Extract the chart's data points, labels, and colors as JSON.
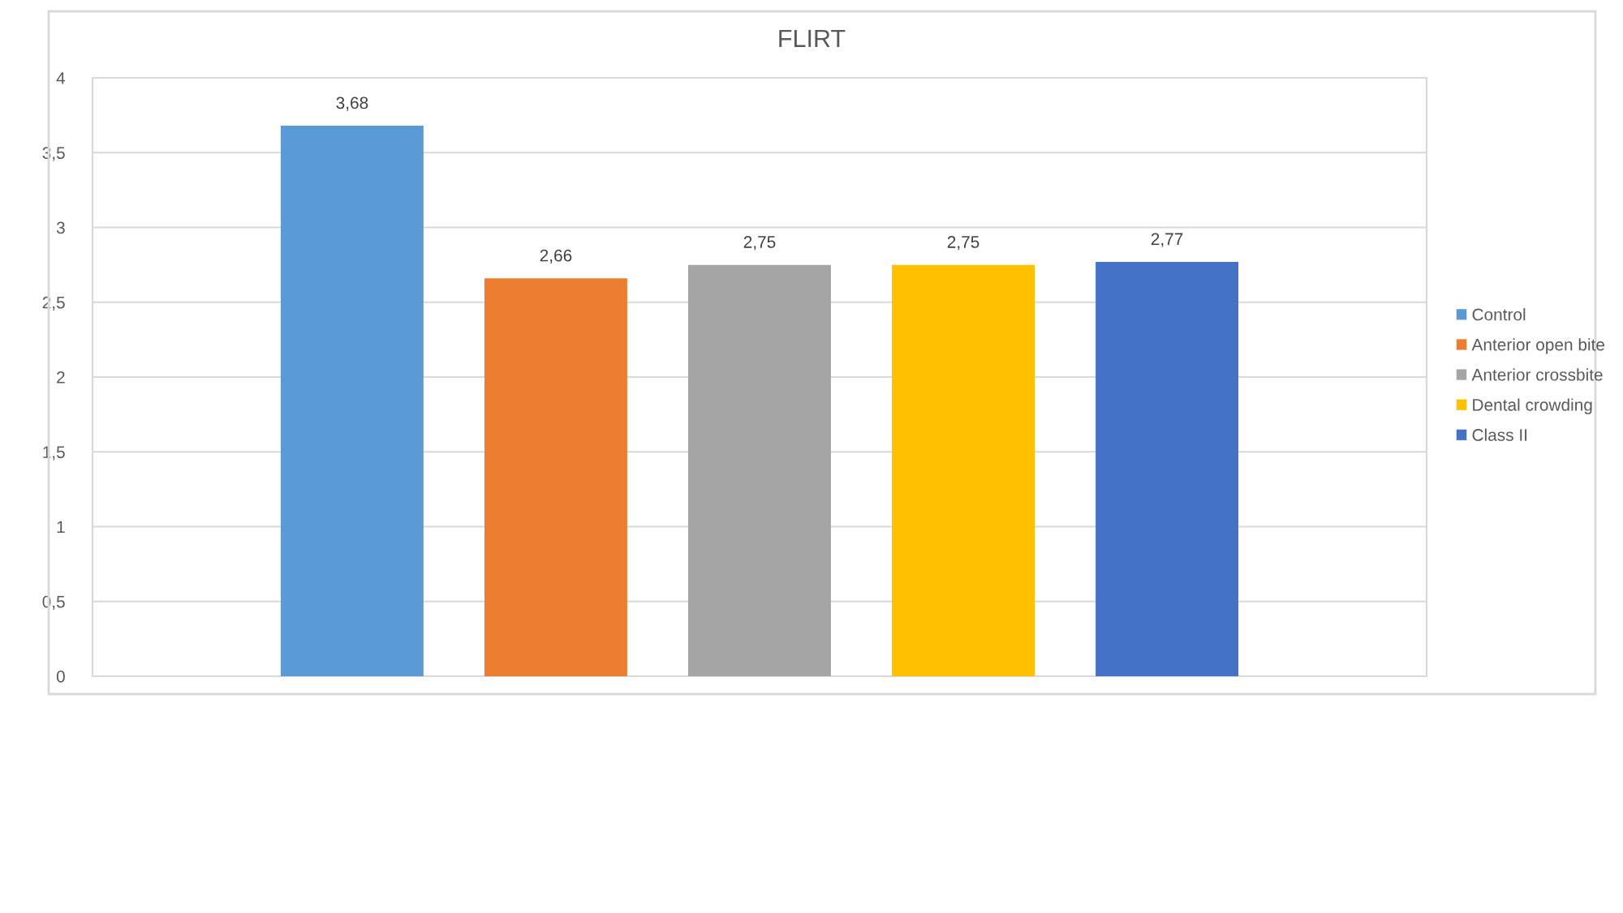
{
  "chart_data": {
    "type": "bar",
    "title": "FLIRT",
    "categories": [
      null
    ],
    "series": [
      {
        "name": "Control",
        "color": "#5b9bd5",
        "values": [
          3.68
        ],
        "value_labels": [
          "3,68"
        ]
      },
      {
        "name": "Anterior open bite",
        "color": "#ed7d31",
        "values": [
          2.66
        ],
        "value_labels": [
          "2,66"
        ]
      },
      {
        "name": "Anterior crossbite",
        "color": "#a5a5a5",
        "values": [
          2.75
        ],
        "value_labels": [
          "2,75"
        ]
      },
      {
        "name": "Dental crowding",
        "color": "#ffc000",
        "values": [
          2.75
        ],
        "value_labels": [
          "2,75"
        ]
      },
      {
        "name": "Class II",
        "color": "#4472c4",
        "values": [
          2.77
        ],
        "value_labels": [
          "2,77"
        ]
      }
    ],
    "ylim": [
      0,
      4
    ],
    "yticks": [
      0,
      {
        "value": 0.5,
        "label": "0,5"
      },
      1,
      {
        "value": 1.5,
        "label": "1,5"
      },
      2,
      {
        "value": 2.5,
        "label": "2,5"
      },
      3,
      {
        "value": 3.5,
        "label": "3,5"
      },
      4
    ],
    "grid": "y",
    "legend": "right"
  }
}
